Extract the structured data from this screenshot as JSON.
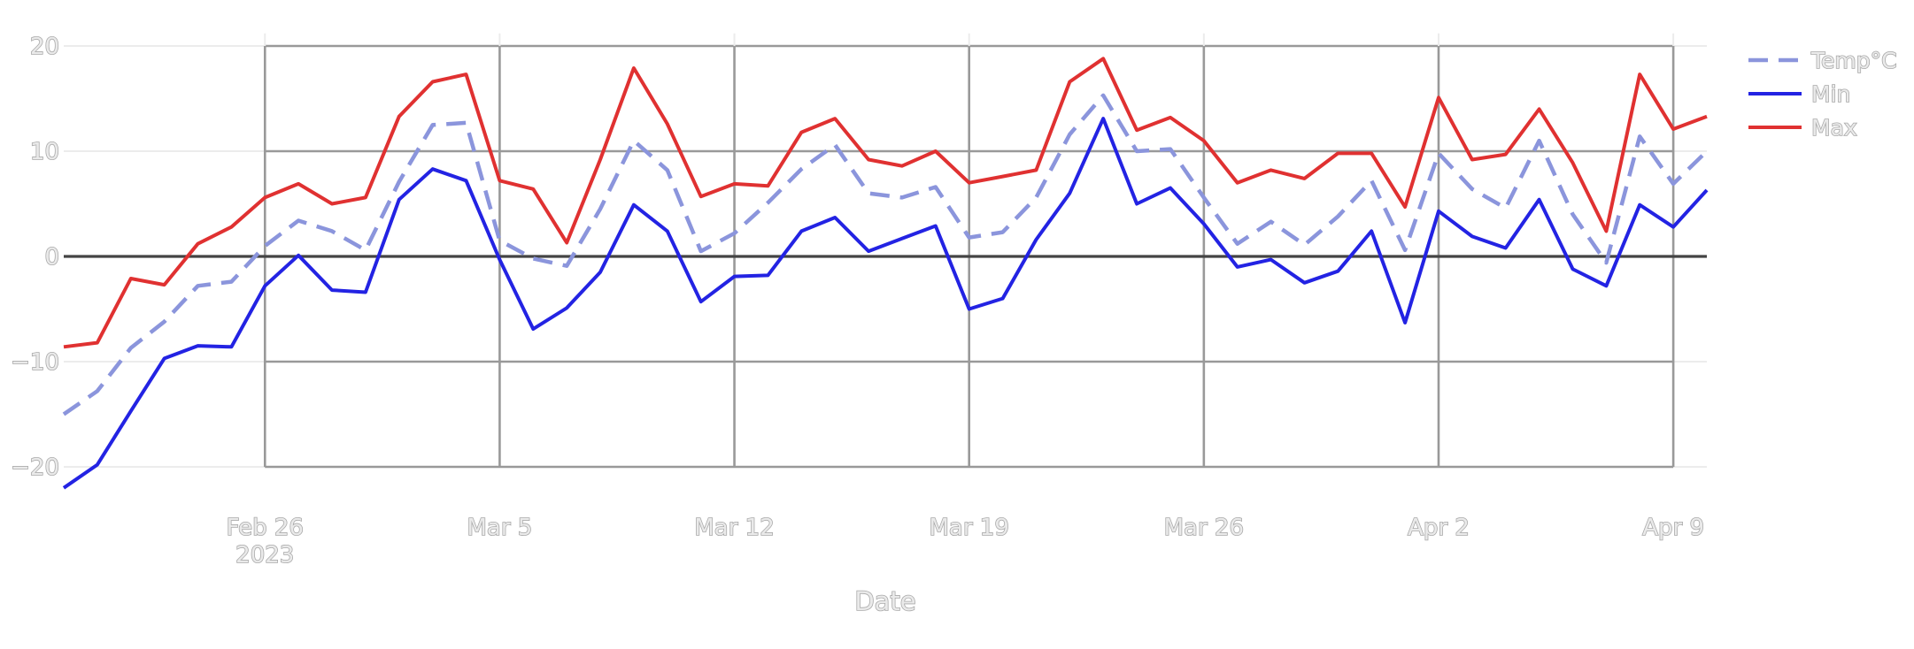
{
  "chart_data": {
    "type": "line",
    "title": "",
    "xlabel": "Date",
    "ylabel": "",
    "ylim": [
      -23,
      21
    ],
    "yticks": [
      20,
      10,
      0,
      -10,
      -20
    ],
    "ytick_labels": [
      "20",
      "10",
      "0",
      "−10",
      "−20"
    ],
    "x_start": "2023-02-20",
    "x_end": "2023-04-10",
    "xticks": [
      {
        "day": 6,
        "label": "Feb 26",
        "sublabel": "2023"
      },
      {
        "day": 13,
        "label": "Mar 5"
      },
      {
        "day": 20,
        "label": "Mar 12"
      },
      {
        "day": 27,
        "label": "Mar 19"
      },
      {
        "day": 34,
        "label": "Mar 26"
      },
      {
        "day": 41,
        "label": "Apr 2"
      },
      {
        "day": 48,
        "label": "Apr 9"
      }
    ],
    "x": [
      "2023-02-20",
      "2023-02-21",
      "2023-02-22",
      "2023-02-23",
      "2023-02-24",
      "2023-02-25",
      "2023-02-26",
      "2023-02-27",
      "2023-02-28",
      "2023-03-01",
      "2023-03-02",
      "2023-03-03",
      "2023-03-04",
      "2023-03-05",
      "2023-03-06",
      "2023-03-07",
      "2023-03-08",
      "2023-03-09",
      "2023-03-10",
      "2023-03-11",
      "2023-03-12",
      "2023-03-13",
      "2023-03-14",
      "2023-03-15",
      "2023-03-16",
      "2023-03-17",
      "2023-03-18",
      "2023-03-19",
      "2023-03-20",
      "2023-03-21",
      "2023-03-22",
      "2023-03-23",
      "2023-03-24",
      "2023-03-25",
      "2023-03-26",
      "2023-03-27",
      "2023-03-28",
      "2023-03-29",
      "2023-03-30",
      "2023-03-31",
      "2023-04-01",
      "2023-04-02",
      "2023-04-03",
      "2023-04-04",
      "2023-04-05",
      "2023-04-06",
      "2023-04-07",
      "2023-04-08",
      "2023-04-09",
      "2023-04-10"
    ],
    "series": [
      {
        "name": "Temp°C",
        "color": "#8b95dc",
        "dash": true,
        "values": [
          -15.0,
          -12.8,
          -8.7,
          -6.2,
          -2.8,
          -2.4,
          1.0,
          3.4,
          2.4,
          0.6,
          7.1,
          12.5,
          12.7,
          1.5,
          -0.2,
          -0.9,
          4.5,
          11.0,
          8.2,
          0.5,
          2.2,
          5.1,
          8.3,
          10.6,
          6.0,
          5.6,
          6.6,
          1.8,
          2.3,
          5.6,
          11.6,
          15.3,
          10.0,
          10.2,
          5.6,
          1.2,
          3.3,
          1.1,
          3.8,
          7.2,
          0.6,
          9.8,
          6.4,
          4.6,
          11.0,
          4.0,
          -0.6,
          11.4,
          6.9,
          10.0
        ]
      },
      {
        "name": "Min",
        "color": "#2323e3",
        "dash": false,
        "values": [
          -22.0,
          -19.8,
          -14.7,
          -9.7,
          -8.5,
          -8.6,
          -2.8,
          0.1,
          -3.2,
          -3.4,
          5.4,
          8.3,
          7.2,
          -0.3,
          -6.9,
          -4.9,
          -1.5,
          4.9,
          2.4,
          -4.3,
          -1.9,
          -1.8,
          2.4,
          3.7,
          0.5,
          1.7,
          2.9,
          -5.0,
          -4.0,
          1.6,
          6.0,
          13.1,
          5.0,
          6.5,
          3.1,
          -1.0,
          -0.3,
          -2.5,
          -1.4,
          2.4,
          -6.3,
          4.3,
          1.9,
          0.8,
          5.4,
          -1.2,
          -2.8,
          4.9,
          2.8,
          6.3
        ]
      },
      {
        "name": "Max",
        "color": "#e03131",
        "dash": false,
        "values": [
          -8.6,
          -8.2,
          -2.1,
          -2.7,
          1.2,
          2.8,
          5.6,
          6.9,
          5.0,
          5.6,
          13.3,
          16.6,
          17.3,
          7.2,
          6.4,
          1.3,
          9.2,
          17.9,
          12.6,
          5.7,
          6.9,
          6.7,
          11.8,
          13.1,
          9.2,
          8.6,
          10.0,
          7.0,
          7.6,
          8.2,
          16.6,
          18.8,
          12.0,
          13.2,
          11.0,
          7.0,
          8.2,
          7.4,
          9.8,
          9.8,
          4.7,
          15.1,
          9.2,
          9.7,
          14.0,
          8.9,
          2.4,
          17.3,
          12.1,
          13.3
        ]
      }
    ],
    "legend_position": "top-right",
    "grid": true
  }
}
